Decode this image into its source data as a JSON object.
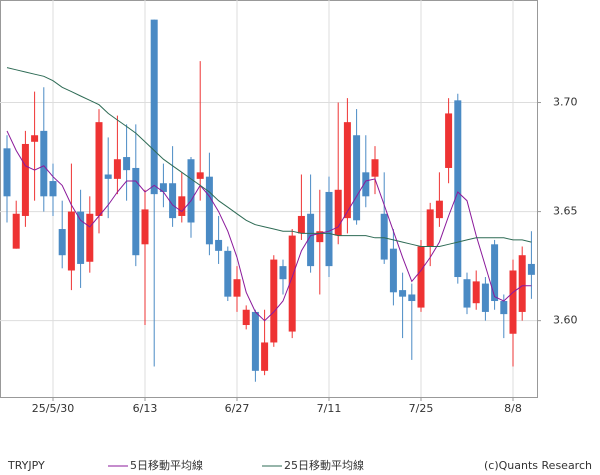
{
  "chart_data": {
    "type": "candlestick",
    "symbol": "TRYJPY",
    "credit": "(c)Quants Research",
    "categories": [
      null,
      null,
      null,
      null,
      null,
      "25/5/30",
      null,
      null,
      null,
      null,
      null,
      null,
      null,
      null,
      null,
      "6/13",
      null,
      null,
      null,
      null,
      null,
      null,
      null,
      null,
      null,
      "6/27",
      null,
      null,
      null,
      null,
      null,
      null,
      null,
      null,
      null,
      "7/11",
      null,
      null,
      null,
      null,
      null,
      null,
      null,
      null,
      null,
      "7/25",
      null,
      null,
      null,
      null,
      null,
      null,
      null,
      null,
      null,
      "8/8",
      null,
      null
    ],
    "open": [
      3.679,
      3.633,
      3.648,
      3.682,
      3.687,
      3.664,
      3.642,
      3.623,
      3.65,
      3.627,
      3.648,
      3.667,
      3.665,
      3.675,
      3.67,
      3.635,
      3.738,
      3.663,
      3.663,
      3.648,
      3.674,
      3.665,
      3.666,
      3.637,
      3.632,
      3.611,
      3.598,
      3.604,
      3.577,
      3.59,
      3.625,
      3.595,
      3.64,
      3.649,
      3.636,
      3.659,
      3.639,
      3.647,
      3.685,
      3.668,
      3.666,
      3.649,
      3.633,
      3.614,
      3.612,
      3.606,
      3.634,
      3.647,
      3.67,
      3.701,
      3.619,
      3.608,
      3.617,
      3.635,
      3.609,
      3.594,
      3.604,
      3.626
    ],
    "high": [
      3.685,
      3.655,
      3.687,
      3.705,
      3.707,
      3.672,
      3.655,
      3.672,
      3.66,
      3.657,
      3.697,
      3.684,
      3.694,
      3.69,
      3.69,
      3.66,
      3.738,
      3.672,
      3.68,
      3.668,
      3.675,
      3.719,
      3.677,
      3.648,
      3.634,
      3.625,
      3.607,
      3.605,
      3.605,
      3.63,
      3.628,
      3.642,
      3.667,
      3.667,
      3.66,
      3.666,
      3.7,
      3.702,
      3.697,
      3.685,
      3.68,
      3.668,
      3.642,
      3.622,
      3.617,
      3.637,
      3.654,
      3.668,
      3.702,
      3.704,
      3.622,
      3.623,
      3.62,
      3.637,
      3.612,
      3.628,
      3.634,
      3.641
    ],
    "low": [
      3.645,
      3.633,
      3.643,
      3.655,
      3.65,
      3.648,
      3.624,
      3.614,
      3.615,
      3.622,
      3.64,
      3.647,
      3.658,
      3.655,
      3.625,
      3.598,
      3.579,
      3.652,
      3.643,
      3.645,
      3.638,
      3.655,
      3.63,
      3.626,
      3.609,
      3.604,
      3.596,
      3.572,
      3.575,
      3.588,
      3.612,
      3.592,
      3.637,
      3.622,
      3.612,
      3.62,
      3.635,
      3.64,
      3.644,
      3.652,
      3.658,
      3.626,
      3.607,
      3.592,
      3.582,
      3.604,
      3.625,
      3.643,
      3.663,
      3.617,
      3.603,
      3.605,
      3.6,
      3.605,
      3.592,
      3.579,
      3.6,
      3.61
    ],
    "close": [
      3.657,
      3.649,
      3.681,
      3.685,
      3.657,
      3.657,
      3.63,
      3.65,
      3.626,
      3.649,
      3.691,
      3.665,
      3.674,
      3.669,
      3.63,
      3.651,
      3.658,
      3.659,
      3.647,
      3.657,
      3.645,
      3.668,
      3.635,
      3.632,
      3.611,
      3.619,
      3.605,
      3.577,
      3.59,
      3.628,
      3.619,
      3.639,
      3.648,
      3.625,
      3.641,
      3.625,
      3.66,
      3.691,
      3.646,
      3.657,
      3.674,
      3.628,
      3.613,
      3.611,
      3.609,
      3.634,
      3.651,
      3.655,
      3.695,
      3.62,
      3.606,
      3.618,
      3.604,
      3.609,
      3.603,
      3.623,
      3.63,
      3.621
    ],
    "up_color": "#ee3333",
    "down_color": "#4a8ac4",
    "series": [
      {
        "name": "5日移動平均線",
        "color": "#8b1a9b",
        "values": [
          3.687,
          3.678,
          3.671,
          3.669,
          3.671,
          3.666,
          3.662,
          3.653,
          3.646,
          3.643,
          3.648,
          3.653,
          3.659,
          3.664,
          3.664,
          3.659,
          3.662,
          3.659,
          3.653,
          3.65,
          3.655,
          3.662,
          3.657,
          3.65,
          3.641,
          3.629,
          3.613,
          3.604,
          3.6,
          3.604,
          3.609,
          3.62,
          3.632,
          3.639,
          3.64,
          3.641,
          3.643,
          3.65,
          3.657,
          3.664,
          3.665,
          3.653,
          3.641,
          3.629,
          3.618,
          3.623,
          3.629,
          3.636,
          3.648,
          3.659,
          3.655,
          3.639,
          3.625,
          3.611,
          3.609,
          3.613,
          3.616,
          3.616
        ]
      },
      {
        "name": "25日移動平均線",
        "color": "#2e6b55",
        "values": [
          3.716,
          3.715,
          3.714,
          3.713,
          3.712,
          3.71,
          3.707,
          3.705,
          3.703,
          3.701,
          3.699,
          3.695,
          3.692,
          3.689,
          3.686,
          3.682,
          3.678,
          3.674,
          3.671,
          3.668,
          3.665,
          3.662,
          3.659,
          3.655,
          3.652,
          3.649,
          3.646,
          3.644,
          3.643,
          3.642,
          3.641,
          3.641,
          3.64,
          3.64,
          3.64,
          3.64,
          3.639,
          3.639,
          3.639,
          3.639,
          3.638,
          3.638,
          3.637,
          3.636,
          3.635,
          3.634,
          3.634,
          3.634,
          3.635,
          3.636,
          3.637,
          3.638,
          3.638,
          3.638,
          3.638,
          3.637,
          3.637,
          3.636
        ]
      }
    ],
    "ylim": [
      3.565,
      3.747
    ],
    "yticks": [
      {
        "value": 3.6,
        "label": "3.60"
      },
      {
        "value": 3.65,
        "label": "3.65"
      },
      {
        "value": 3.7,
        "label": "3.70"
      }
    ],
    "grid": true
  }
}
